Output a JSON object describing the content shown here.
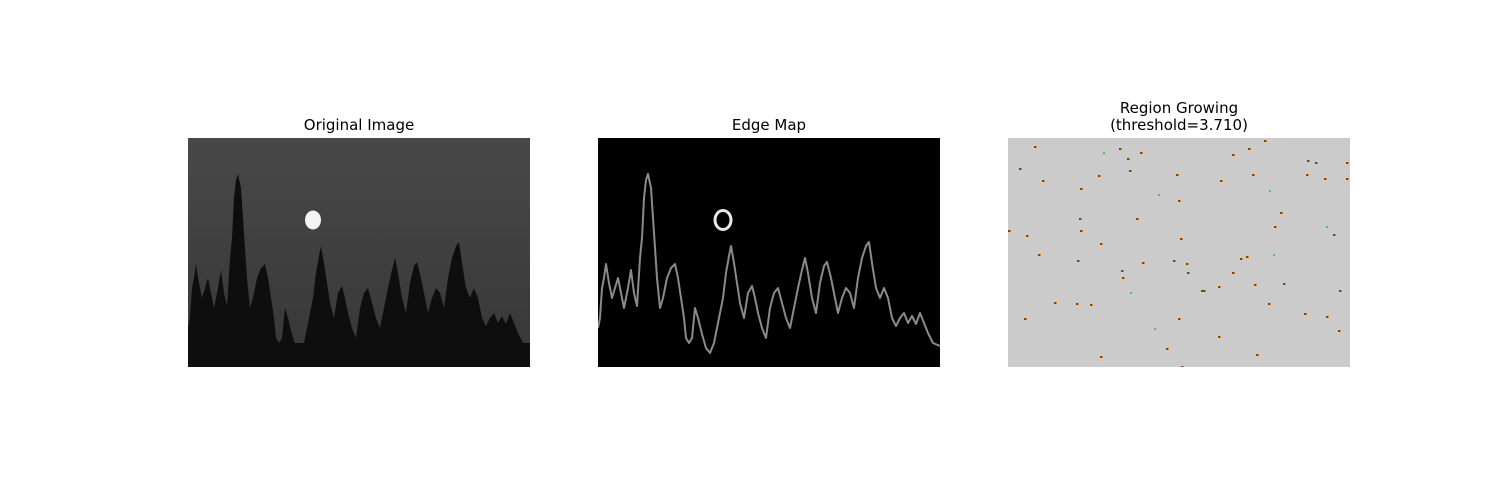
{
  "panels": [
    {
      "title": "Original Image",
      "image": "night-forest-silhouette-with-moon"
    },
    {
      "title": "Edge Map",
      "image": "edge-detected-tree-and-moon-outlines"
    },
    {
      "title": "Region Growing\n(threshold=3.710)",
      "image": "grey-segmentation-with-scattered-seed-markers"
    }
  ],
  "colors": {
    "original_sky": "#474747",
    "original_ground": "#0e0e0e",
    "edge_background": "#000000",
    "edge_line": "#8a8a8a",
    "region_background": "#cbcbcb",
    "region_marker_dark": "#6b5200",
    "region_marker_orange": "#ff7a00",
    "region_marker_green": "#33dd33"
  }
}
